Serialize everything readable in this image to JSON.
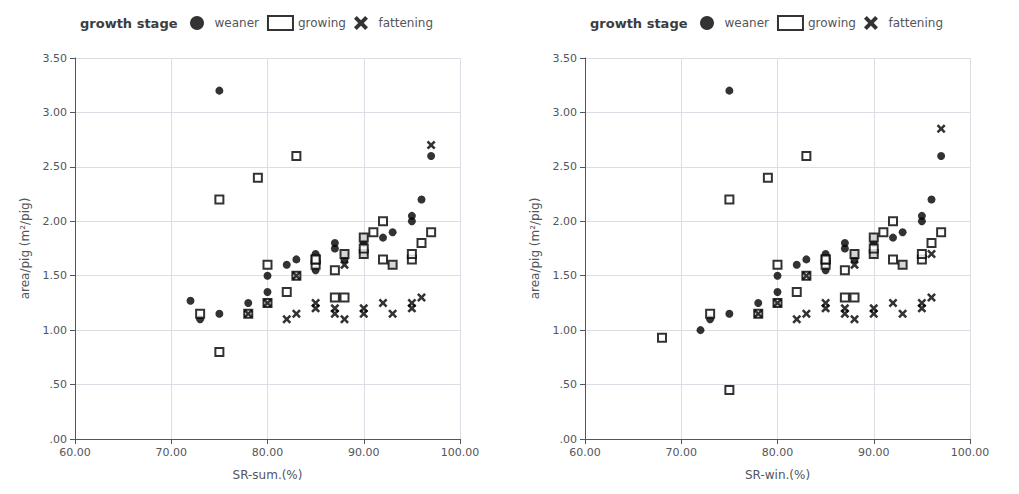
{
  "chart_data": [
    {
      "type": "scatter",
      "legend_title": "growth stage",
      "xlabel": "SR-sum.(%)",
      "ylabel": "area/pig (m²/pig)",
      "xlim": [
        60,
        100
      ],
      "xticks": [
        {
          "value": 60,
          "label": "60.00"
        },
        {
          "value": 70,
          "label": "70.00"
        },
        {
          "value": 80,
          "label": "80.00"
        },
        {
          "value": 90,
          "label": "90.00"
        },
        {
          "value": 100,
          "label": "100.00"
        }
      ],
      "ylim": [
        0,
        3.5
      ],
      "yticks": [
        {
          "value": 0.0,
          "label": ".00"
        },
        {
          "value": 0.5,
          "label": ".50"
        },
        {
          "value": 1.0,
          "label": "1.00"
        },
        {
          "value": 1.5,
          "label": "1.50"
        },
        {
          "value": 2.0,
          "label": "2.00"
        },
        {
          "value": 2.5,
          "label": "2.50"
        },
        {
          "value": 3.0,
          "label": "3.00"
        },
        {
          "value": 3.5,
          "label": "3.50"
        }
      ],
      "grid": true,
      "series": [
        {
          "name": "weaner",
          "marker": "circle",
          "color": "#000000",
          "x": [
            72,
            73,
            75,
            78,
            80,
            80,
            82,
            83,
            85,
            85,
            87,
            87,
            88,
            90,
            90,
            92,
            93,
            93,
            95,
            95,
            96,
            97,
            75,
            85,
            88,
            90
          ],
          "values": [
            1.27,
            1.1,
            1.15,
            1.25,
            1.35,
            1.5,
            1.6,
            1.65,
            1.55,
            1.7,
            1.75,
            1.8,
            1.65,
            1.7,
            1.8,
            1.85,
            1.9,
            1.6,
            2.0,
            2.05,
            2.2,
            2.6,
            3.2,
            1.65,
            1.7,
            1.85
          ]
        },
        {
          "name": "growing",
          "marker": "square-open",
          "color": "#000000",
          "x": [
            73,
            75,
            78,
            80,
            82,
            83,
            85,
            85,
            87,
            87,
            88,
            90,
            90,
            92,
            93,
            95,
            95,
            96,
            97,
            80,
            85,
            88,
            90,
            91,
            92,
            75,
            79,
            83
          ],
          "values": [
            1.15,
            0.8,
            1.15,
            1.25,
            1.35,
            1.5,
            1.6,
            1.65,
            1.55,
            1.3,
            1.3,
            1.7,
            1.75,
            1.65,
            1.6,
            1.65,
            1.7,
            1.8,
            1.9,
            1.6,
            1.65,
            1.7,
            1.85,
            1.9,
            2.0,
            2.2,
            2.4,
            2.6
          ]
        },
        {
          "name": "fattening",
          "marker": "x",
          "color": "#000000",
          "x": [
            78,
            80,
            82,
            83,
            85,
            85,
            87,
            87,
            88,
            90,
            90,
            92,
            93,
            95,
            95,
            96,
            97,
            83,
            88
          ],
          "values": [
            1.15,
            1.25,
            1.1,
            1.15,
            1.2,
            1.25,
            1.15,
            1.2,
            1.1,
            1.15,
            1.2,
            1.25,
            1.15,
            1.2,
            1.25,
            1.3,
            2.7,
            1.5,
            1.6
          ]
        }
      ]
    },
    {
      "type": "scatter",
      "legend_title": "growth stage",
      "xlabel": "SR-win.(%)",
      "ylabel": "area/pig (m²/pig)",
      "xlim": [
        60,
        100
      ],
      "xticks": [
        {
          "value": 60,
          "label": "60.00"
        },
        {
          "value": 70,
          "label": "70.00"
        },
        {
          "value": 80,
          "label": "80.00"
        },
        {
          "value": 90,
          "label": "90.00"
        },
        {
          "value": 100,
          "label": "100.00"
        }
      ],
      "ylim": [
        0,
        3.5
      ],
      "yticks": [
        {
          "value": 0.0,
          "label": ".00"
        },
        {
          "value": 0.5,
          "label": ".50"
        },
        {
          "value": 1.0,
          "label": "1.00"
        },
        {
          "value": 1.5,
          "label": "1.50"
        },
        {
          "value": 2.0,
          "label": "2.00"
        },
        {
          "value": 2.5,
          "label": "2.50"
        },
        {
          "value": 3.0,
          "label": "3.00"
        },
        {
          "value": 3.5,
          "label": "3.50"
        }
      ],
      "grid": true,
      "series": [
        {
          "name": "weaner",
          "marker": "circle",
          "color": "#000000",
          "x": [
            72,
            73,
            75,
            78,
            80,
            80,
            82,
            83,
            85,
            85,
            87,
            87,
            88,
            90,
            90,
            92,
            93,
            93,
            95,
            95,
            96,
            97,
            75,
            85,
            88,
            90
          ],
          "values": [
            1.0,
            1.1,
            1.15,
            1.25,
            1.35,
            1.5,
            1.6,
            1.65,
            1.55,
            1.7,
            1.75,
            1.8,
            1.65,
            1.7,
            1.8,
            1.85,
            1.9,
            1.6,
            2.0,
            2.05,
            2.2,
            2.6,
            3.2,
            1.65,
            1.7,
            1.85
          ]
        },
        {
          "name": "growing",
          "marker": "square-open",
          "color": "#000000",
          "x": [
            73,
            75,
            78,
            80,
            82,
            83,
            85,
            85,
            87,
            87,
            88,
            90,
            90,
            92,
            93,
            95,
            95,
            96,
            97,
            80,
            85,
            88,
            90,
            91,
            92,
            75,
            79,
            83,
            68
          ],
          "values": [
            1.15,
            0.45,
            1.15,
            1.25,
            1.35,
            1.5,
            1.6,
            1.65,
            1.55,
            1.3,
            1.3,
            1.7,
            1.75,
            1.65,
            1.6,
            1.65,
            1.7,
            1.8,
            1.9,
            1.6,
            1.65,
            1.7,
            1.85,
            1.9,
            2.0,
            2.2,
            2.4,
            2.6,
            0.93
          ]
        },
        {
          "name": "fattening",
          "marker": "x",
          "color": "#000000",
          "x": [
            78,
            80,
            82,
            83,
            85,
            85,
            87,
            87,
            88,
            90,
            90,
            92,
            93,
            95,
            95,
            96,
            97,
            83,
            88,
            96
          ],
          "values": [
            1.15,
            1.25,
            1.1,
            1.15,
            1.2,
            1.25,
            1.15,
            1.2,
            1.1,
            1.15,
            1.2,
            1.25,
            1.15,
            1.2,
            1.25,
            1.3,
            2.85,
            1.5,
            1.6,
            1.7
          ]
        }
      ]
    }
  ]
}
